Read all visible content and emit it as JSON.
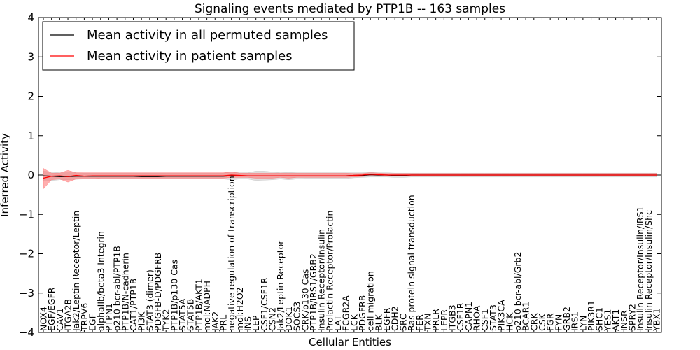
{
  "chart_data": {
    "type": "line",
    "title": "Signaling events mediated by PTP1B -- 163 samples",
    "xlabel": "Cellular Entities",
    "ylabel": "Inferred Activity",
    "ylim": [
      -4,
      4
    ],
    "yticks": [
      -4,
      -3,
      -2,
      -1,
      0,
      1,
      2,
      3,
      4
    ],
    "ytick_labels": [
      "−4",
      "−3",
      "−2",
      "−1",
      "0",
      "1",
      "2",
      "3",
      "4"
    ],
    "legend": {
      "placement": "top-left",
      "entries": [
        {
          "label": "Mean activity in all permuted samples",
          "color": "#000000"
        },
        {
          "label": "Mean activity in patient samples",
          "color": "#ff0000"
        }
      ]
    },
    "categories": [
      "NOX4",
      "EGF/EGFR",
      "CAV1",
      "ITGA2B",
      "Jak2/Leptin Receptor/Leptin",
      "TRPV6",
      "EGF",
      "alphaIIb/beta3 Integrin",
      "PTPN1",
      "p210 bcr-abl/PTP1B",
      "PTP1B/N-cadherin",
      "CAT1/PTP1B",
      "PI3K",
      "STAT3 (dimer)",
      "PDGFB-D/PDGFRB",
      "TYK2",
      "PTP1B/p130 Cas",
      "STAT5A",
      "STAT5B",
      "PTP1B/AKT1",
      "mol:NADPH",
      "JAK2",
      "PRL",
      "negative regulation of transcription",
      "mol:H2O2",
      "INS",
      "LEP",
      "CSF1/CSF1R",
      "CSN2",
      "Jak2/Leptin Receptor",
      "DOK1",
      "SOCS3",
      "CRK/p130 Cas",
      "PTP1B/IRS1/GRB2",
      "Insulin Receptor/Insulin",
      "Prolactin Receptor/Prolactin",
      "LAT",
      "FCGR2A",
      "LCK",
      "PDGFRB",
      "cell migration",
      "BLK",
      "EGFR",
      "CDH2",
      "SRC",
      "Ras protein signal transduction",
      "FER",
      "TXN",
      "PRLR",
      "LEPR",
      "ITGB3",
      "CSF1R",
      "CAPN1",
      "RHOA",
      "CSF1",
      "STAT3",
      "PIK3CA",
      "HCK",
      "p210 bcr-abl/Grb2",
      "BCAR1",
      "CRK",
      "CSK",
      "FGR",
      "FYN",
      "GRB2",
      "IRS1",
      "LYN",
      "PIK3R1",
      "SHC1",
      "YES1",
      "AKT1",
      "INSR",
      "SPRY2",
      "Insulin Receptor/Insulin/IRS1",
      "Insulin Receptor/Insulin/Shc",
      "YBX1"
    ],
    "series": [
      {
        "name": "Mean activity in all permuted samples",
        "color": "#000000",
        "values": [
          -0.02,
          -0.03,
          -0.04,
          -0.04,
          -0.03,
          -0.03,
          -0.03,
          -0.03,
          -0.03,
          -0.03,
          -0.03,
          -0.03,
          -0.04,
          -0.04,
          -0.04,
          -0.03,
          -0.03,
          -0.03,
          -0.03,
          -0.03,
          -0.03,
          -0.03,
          -0.03,
          -0.02,
          -0.02,
          -0.02,
          -0.02,
          -0.02,
          -0.02,
          -0.02,
          -0.02,
          -0.02,
          -0.02,
          -0.02,
          -0.02,
          -0.02,
          -0.02,
          -0.02,
          -0.01,
          -0.01,
          0.01,
          0.0,
          0.0,
          -0.01,
          -0.01,
          0.0,
          0.0,
          0.0,
          0.0,
          0.0,
          0.0,
          0.0,
          0.0,
          0.0,
          0.0,
          0.0,
          0.0,
          0.0,
          0.0,
          0.0,
          0.0,
          0.0,
          0.0,
          0.0,
          0.0,
          0.0,
          0.0,
          0.0,
          0.0,
          0.0,
          0.0,
          0.0,
          0.0,
          0.0,
          0.0,
          0.0
        ]
      },
      {
        "name": "Mean activity in patient samples",
        "color": "#ff0000",
        "values": [
          -0.08,
          -0.03,
          -0.02,
          -0.04,
          -0.01,
          -0.03,
          -0.02,
          -0.02,
          -0.02,
          -0.02,
          -0.02,
          -0.02,
          -0.02,
          -0.02,
          -0.02,
          -0.02,
          -0.02,
          -0.02,
          -0.02,
          -0.02,
          -0.02,
          -0.02,
          -0.02,
          0.0,
          -0.01,
          -0.02,
          -0.02,
          -0.02,
          -0.02,
          -0.02,
          -0.02,
          -0.02,
          -0.02,
          -0.02,
          -0.02,
          -0.02,
          -0.02,
          -0.02,
          -0.01,
          0.0,
          0.02,
          0.01,
          0.0,
          0.0,
          0.0,
          0.0,
          0.0,
          0.0,
          0.0,
          0.0,
          0.0,
          0.0,
          0.0,
          0.0,
          0.0,
          0.0,
          0.0,
          0.0,
          0.0,
          0.0,
          0.0,
          0.0,
          0.0,
          0.0,
          0.0,
          0.0,
          0.0,
          0.0,
          0.0,
          0.0,
          0.0,
          0.0,
          0.0,
          0.0,
          0.0,
          0.0
        ]
      }
    ],
    "bands": [
      {
        "name": "permuted spread",
        "color": "#bbbbbb",
        "lower": [
          -0.15,
          -0.14,
          -0.12,
          -0.12,
          -0.11,
          -0.1,
          -0.1,
          -0.1,
          -0.1,
          -0.1,
          -0.1,
          -0.1,
          -0.1,
          -0.1,
          -0.1,
          -0.1,
          -0.1,
          -0.1,
          -0.1,
          -0.1,
          -0.1,
          -0.1,
          -0.1,
          -0.12,
          -0.1,
          -0.1,
          -0.14,
          -0.13,
          -0.12,
          -0.1,
          -0.12,
          -0.1,
          -0.09,
          -0.09,
          -0.09,
          -0.09,
          -0.09,
          -0.09,
          -0.07,
          -0.06,
          -0.05,
          -0.05,
          -0.05,
          -0.06,
          -0.06,
          -0.05,
          -0.05,
          -0.05,
          -0.05,
          -0.05,
          -0.05,
          -0.05,
          -0.05,
          -0.05,
          -0.05,
          -0.05,
          -0.05,
          -0.05,
          -0.05,
          -0.05,
          -0.05,
          -0.05,
          -0.05,
          -0.05,
          -0.05,
          -0.05,
          -0.05,
          -0.05,
          -0.05,
          -0.05,
          -0.05,
          -0.05,
          -0.05,
          -0.05,
          -0.05,
          -0.05
        ],
        "upper": [
          0.1,
          0.08,
          0.06,
          0.06,
          0.06,
          0.05,
          0.05,
          0.05,
          0.05,
          0.05,
          0.05,
          0.05,
          0.05,
          0.05,
          0.05,
          0.05,
          0.05,
          0.05,
          0.05,
          0.05,
          0.05,
          0.05,
          0.05,
          0.08,
          0.06,
          0.06,
          0.1,
          0.1,
          0.08,
          0.06,
          0.07,
          0.06,
          0.06,
          0.06,
          0.06,
          0.06,
          0.06,
          0.06,
          0.06,
          0.06,
          0.07,
          0.06,
          0.06,
          0.05,
          0.05,
          0.05,
          0.05,
          0.05,
          0.05,
          0.05,
          0.05,
          0.05,
          0.05,
          0.05,
          0.05,
          0.05,
          0.05,
          0.05,
          0.05,
          0.05,
          0.05,
          0.05,
          0.05,
          0.05,
          0.05,
          0.05,
          0.05,
          0.05,
          0.05,
          0.05,
          0.05,
          0.05,
          0.05,
          0.05,
          0.05,
          0.05
        ]
      },
      {
        "name": "patient spread",
        "color": "#ff6b6b",
        "lower": [
          -0.35,
          -0.12,
          -0.1,
          -0.18,
          -0.1,
          -0.1,
          -0.1,
          -0.08,
          -0.08,
          -0.08,
          -0.08,
          -0.08,
          -0.08,
          -0.08,
          -0.08,
          -0.08,
          -0.08,
          -0.08,
          -0.08,
          -0.08,
          -0.08,
          -0.08,
          -0.08,
          -0.06,
          -0.06,
          -0.06,
          -0.08,
          -0.08,
          -0.08,
          -0.06,
          -0.08,
          -0.06,
          -0.06,
          -0.06,
          -0.06,
          -0.06,
          -0.06,
          -0.06,
          -0.05,
          -0.04,
          -0.02,
          -0.03,
          -0.03,
          -0.03,
          -0.03,
          -0.03,
          -0.03,
          -0.03,
          -0.03,
          -0.03,
          -0.03,
          -0.03,
          -0.03,
          -0.03,
          -0.03,
          -0.03,
          -0.03,
          -0.03,
          -0.03,
          -0.03,
          -0.03,
          -0.03,
          -0.03,
          -0.03,
          -0.03,
          -0.03,
          -0.03,
          -0.03,
          -0.03,
          -0.03,
          -0.03,
          -0.03,
          -0.03,
          -0.03,
          -0.03,
          -0.03
        ],
        "upper": [
          0.17,
          0.05,
          0.05,
          0.12,
          0.06,
          0.06,
          0.06,
          0.06,
          0.06,
          0.06,
          0.06,
          0.06,
          0.06,
          0.06,
          0.06,
          0.06,
          0.06,
          0.06,
          0.06,
          0.06,
          0.06,
          0.06,
          0.06,
          0.08,
          0.05,
          0.05,
          0.05,
          0.05,
          0.05,
          0.05,
          0.05,
          0.05,
          0.05,
          0.05,
          0.05,
          0.05,
          0.05,
          0.05,
          0.04,
          0.04,
          0.06,
          0.05,
          0.04,
          0.04,
          0.04,
          0.04,
          0.04,
          0.04,
          0.04,
          0.04,
          0.04,
          0.04,
          0.04,
          0.04,
          0.04,
          0.04,
          0.04,
          0.04,
          0.04,
          0.04,
          0.04,
          0.04,
          0.04,
          0.04,
          0.04,
          0.04,
          0.04,
          0.04,
          0.04,
          0.04,
          0.04,
          0.04,
          0.04,
          0.04,
          0.04,
          0.04
        ]
      }
    ]
  }
}
